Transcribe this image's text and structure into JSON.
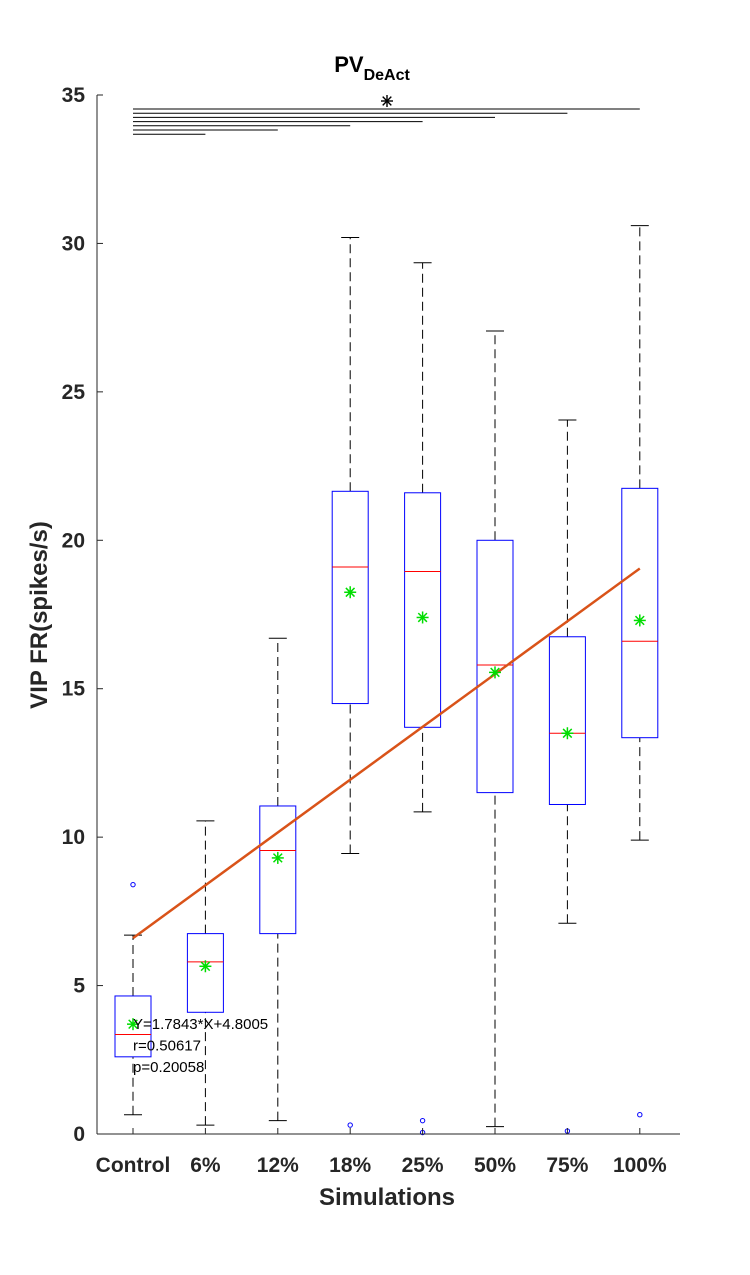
{
  "chart_data": {
    "type": "box",
    "title": "PV",
    "title_subscript": "DeAct",
    "xlabel": "Simulations",
    "ylabel": "VIP FR(spikes/s)",
    "ylim": [
      0,
      35
    ],
    "yticks": [
      0,
      5,
      10,
      15,
      20,
      25,
      30,
      35
    ],
    "ytick_labels": [
      "0",
      "5",
      "10",
      "15",
      "20",
      "25",
      "30",
      "35"
    ],
    "grid": false,
    "categories": [
      "Control",
      "6%",
      "12%",
      "18%",
      "25%",
      "50%",
      "75%",
      "100%"
    ],
    "boxes": [
      {
        "category": "Control",
        "whisker_low": 0.65,
        "q1": 2.6,
        "median": 3.35,
        "q3": 4.65,
        "whisker_high": 6.7,
        "mean": 3.7,
        "outliers": [
          8.4
        ]
      },
      {
        "category": "6%",
        "whisker_low": 0.3,
        "q1": 4.1,
        "median": 5.8,
        "q3": 6.75,
        "whisker_high": 10.55,
        "mean": 5.65,
        "outliers": []
      },
      {
        "category": "12%",
        "whisker_low": 0.45,
        "q1": 6.75,
        "median": 9.55,
        "q3": 11.05,
        "whisker_high": 16.7,
        "mean": 9.3,
        "outliers": []
      },
      {
        "category": "18%",
        "whisker_low": 9.45,
        "q1": 14.5,
        "median": 19.1,
        "q3": 21.65,
        "whisker_high": 30.2,
        "mean": 18.25,
        "outliers": [
          0.3
        ]
      },
      {
        "category": "25%",
        "whisker_low": 10.85,
        "q1": 13.7,
        "median": 18.95,
        "q3": 21.6,
        "whisker_high": 29.35,
        "mean": 17.4,
        "outliers": [
          0.45,
          0.05
        ]
      },
      {
        "category": "50%",
        "whisker_low": 0.25,
        "q1": 11.5,
        "median": 15.8,
        "q3": 20.0,
        "whisker_high": 27.05,
        "mean": 15.55,
        "outliers": []
      },
      {
        "category": "75%",
        "whisker_low": 7.1,
        "q1": 11.1,
        "median": 13.5,
        "q3": 16.75,
        "whisker_high": 24.05,
        "mean": 13.5,
        "outliers": [
          0.1
        ]
      },
      {
        "category": "100%",
        "whisker_low": 9.9,
        "q1": 13.35,
        "median": 16.6,
        "q3": 21.75,
        "whisker_high": 30.6,
        "mean": 17.3,
        "outliers": [
          0.65
        ]
      }
    ],
    "regression_line": {
      "x_start": 1,
      "x_end": 8,
      "y_start": 6.6,
      "y_end": 19.05
    },
    "annotations": [
      "Y=1.7843*X+4.8005",
      "r=0.50617",
      "p=0.20058"
    ],
    "significance": {
      "marker": "*",
      "comparisons": [
        {
          "from": "Control",
          "to": "6%"
        },
        {
          "from": "Control",
          "to": "12%"
        },
        {
          "from": "Control",
          "to": "18%"
        },
        {
          "from": "Control",
          "to": "25%"
        },
        {
          "from": "Control",
          "to": "50%"
        },
        {
          "from": "Control",
          "to": "75%"
        },
        {
          "from": "Control",
          "to": "100%"
        }
      ]
    },
    "colors": {
      "box": "#0000ff",
      "median": "#ff0000",
      "mean": "#00dd00",
      "whisker": "#000000",
      "outlier": "#0000ff",
      "regression": "#d95319",
      "axis": "#262626"
    }
  }
}
